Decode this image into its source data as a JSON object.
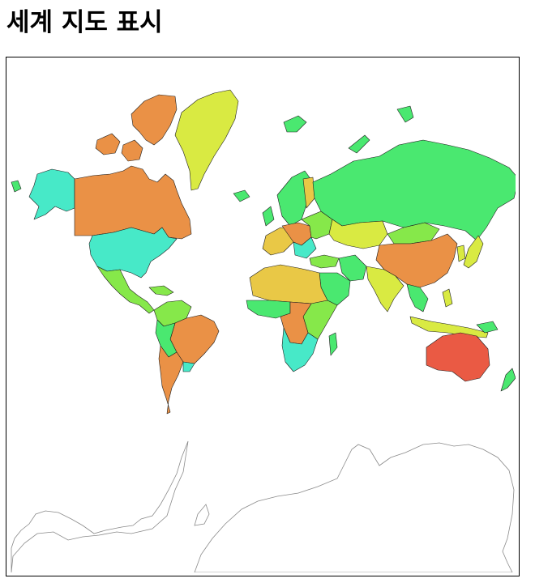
{
  "page": {
    "title": "세계 지도 표시"
  },
  "map": {
    "colors": {
      "orange": "#ea9146",
      "yellow_green": "#d9ea42",
      "green": "#4ae870",
      "teal": "#47e9c8",
      "red": "#ea5a44",
      "yellow": "#e9c846",
      "lime": "#86e84a",
      "antarctica_fill": "#ffffff",
      "antarctica_outline": "#8a8a8a"
    }
  }
}
